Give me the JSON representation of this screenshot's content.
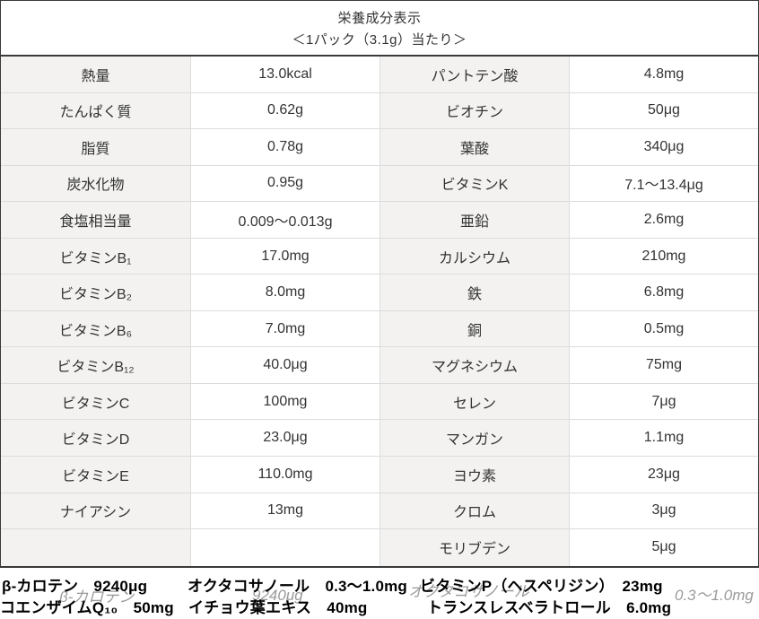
{
  "header": {
    "title": "栄養成分表示",
    "subtitle": "＜1パック（3.1g）当たり＞"
  },
  "table": {
    "rows": [
      [
        "熱量",
        "13.0kcal",
        "パントテン酸",
        "4.8mg"
      ],
      [
        "たんぱく質",
        "0.62g",
        "ビオチン",
        "50μg"
      ],
      [
        "脂質",
        "0.78g",
        "葉酸",
        "340μg"
      ],
      [
        "炭水化物",
        "0.95g",
        "ビタミンK",
        "7.1〜13.4μg"
      ],
      [
        "食塩相当量",
        "0.009〜0.013g",
        "亜鉛",
        "2.6mg"
      ],
      [
        "ビタミンB₁",
        "17.0mg",
        "カルシウム",
        "210mg"
      ],
      [
        "ビタミンB₂",
        "8.0mg",
        "鉄",
        "6.8mg"
      ],
      [
        "ビタミンB₆",
        "7.0mg",
        "銅",
        "0.5mg"
      ],
      [
        "ビタミンB₁₂",
        "40.0μg",
        "マグネシウム",
        "75mg"
      ],
      [
        "ビタミンC",
        "100mg",
        "セレン",
        "7μg"
      ],
      [
        "ビタミンD",
        "23.0μg",
        "マンガン",
        "1.1mg"
      ],
      [
        "ビタミンE",
        "110.0mg",
        "ヨウ素",
        "23μg"
      ],
      [
        "ナイアシン",
        "13mg",
        "クロム",
        "3μg"
      ],
      [
        "",
        "",
        "モリブデン",
        "5μg"
      ]
    ]
  },
  "footer": {
    "ghost_row": [
      "β-カロテン",
      "9240μg",
      "オクタコサノール",
      "0.3〜1.0mg"
    ],
    "bold_lines": [
      [
        "β-カロテン　9240μg",
        "オクタコサノール　0.3〜1.0mg",
        "ビタミンP（ヘスペリジン）　23mg"
      ],
      [
        "コエンザイムQ₁₀　50mg",
        "イチョウ葉エキス　40mg",
        "トランスレスベラトロール　6.0mg"
      ]
    ]
  },
  "colors": {
    "outer_border": "#3a3a3a",
    "inner_border": "#dcdcdc",
    "label_cell_bg": "#f3f2f0",
    "text": "#333333",
    "ghost_text": "#9a9a9a",
    "bold_text": "#000000"
  }
}
